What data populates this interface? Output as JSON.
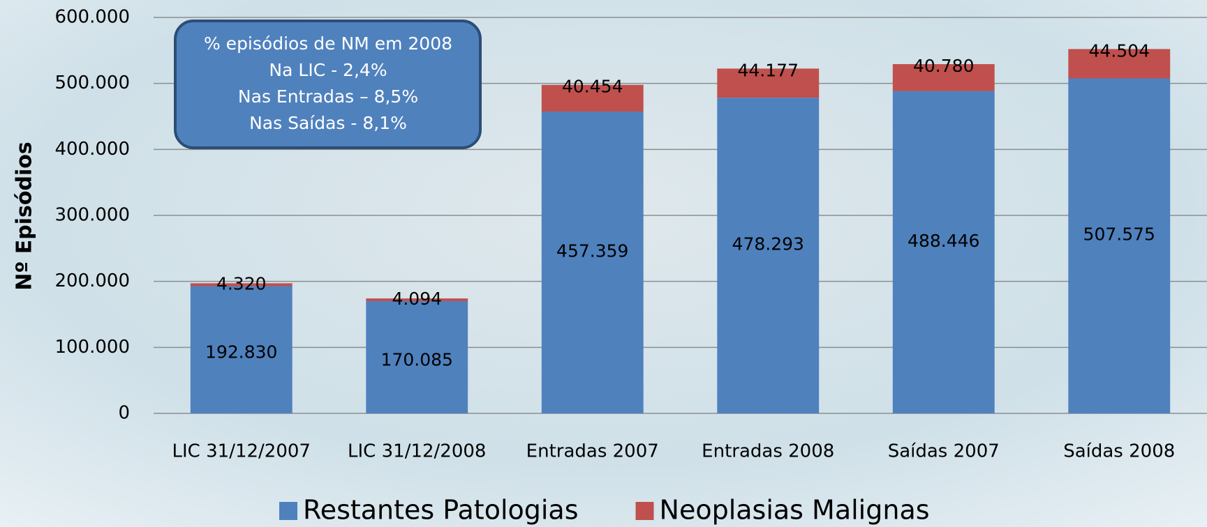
{
  "chart_data": {
    "type": "stacked_bar",
    "y_label": "Nº Episódios",
    "annotation": [
      "% episódios de NM em 2008",
      "Na LIC - 2,4%",
      "Nas Entradas – 8,5%",
      "Nas Saídas  - 8,1%"
    ],
    "categories": [
      "LIC 31/12/2007",
      "LIC 31/12/2008",
      "Entradas 2007",
      "Entradas 2008",
      "Saídas 2007",
      "Saídas 2008"
    ],
    "series": [
      {
        "name": "Restantes Patologias",
        "color": "#4f81bd",
        "values": [
          192830,
          170085,
          457359,
          478293,
          488446,
          507575
        ],
        "value_labels": [
          "192.830",
          "170.085",
          "457.359",
          "478.293",
          "488.446",
          "507.575"
        ]
      },
      {
        "name": "Neoplasias Malignas",
        "color": "#c0504d",
        "values": [
          4320,
          4094,
          40454,
          44177,
          40780,
          44504
        ],
        "value_labels": [
          "4.320",
          "4.094",
          "40.454",
          "44.177",
          "40.780",
          "44.504"
        ]
      }
    ],
    "ylim": [
      0,
      600000
    ],
    "yticks": [
      0,
      {
        "value": 100000,
        "label": "100.000"
      },
      {
        "value": 200000,
        "label": "200.000"
      },
      {
        "value": 300000,
        "label": "300.000"
      },
      {
        "value": 400000,
        "label": "400.000"
      },
      {
        "value": 500000,
        "label": "500.000"
      },
      {
        "value": 600000,
        "label": "600.000"
      }
    ],
    "grid": true
  }
}
